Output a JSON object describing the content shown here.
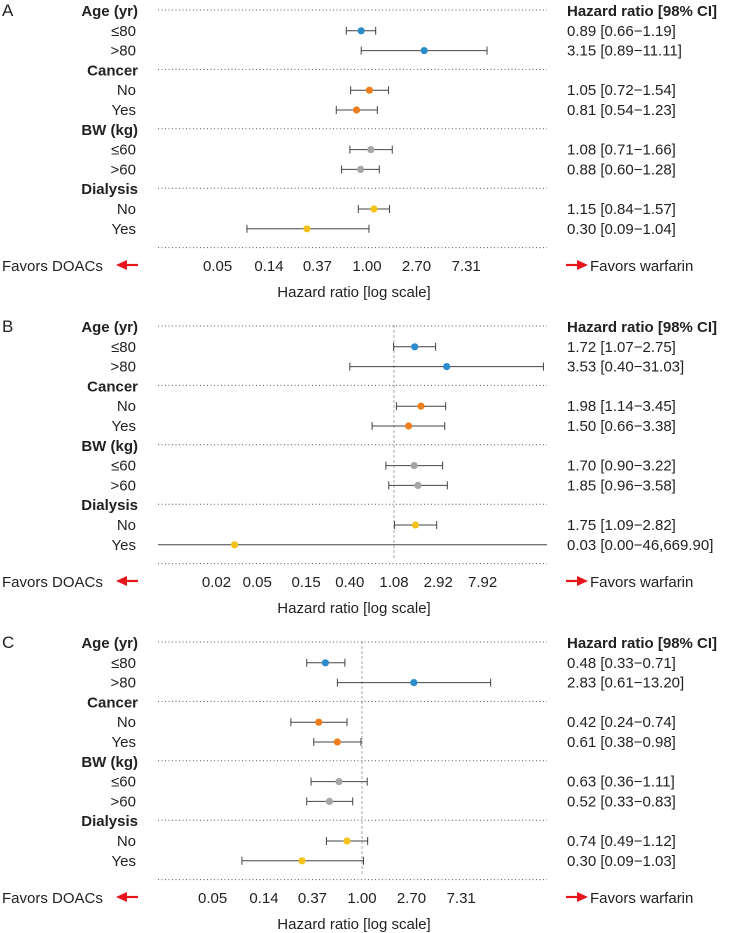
{
  "chart_data": [
    {
      "type": "forest",
      "panel": "A",
      "header": "Hazard ratio [98% CI]",
      "xlabel": "Hazard ratio [log scale]",
      "favors_left": "Favors DOACs",
      "favors_right": "Favors warfarin",
      "x_ticks": [
        "0.05",
        "0.14",
        "0.37",
        "1.00",
        "2.70",
        "7.31"
      ],
      "tick_values": [
        0.05,
        0.14,
        0.37,
        1.0,
        2.7,
        7.31
      ],
      "reference_line": false,
      "groups": [
        {
          "name": "Age (yr)",
          "rows": [
            {
              "label": "≤80",
              "hr": 0.89,
              "lo": 0.66,
              "hi": 1.19,
              "ci_text": "0.89 [0.66−1.19]",
              "color": "#2b8ccc"
            },
            {
              "label": ">80",
              "hr": 3.15,
              "lo": 0.89,
              "hi": 11.11,
              "ci_text": "3.15 [0.89−11.11]",
              "color": "#2b8ccc"
            }
          ]
        },
        {
          "name": "Cancer",
          "rows": [
            {
              "label": "No",
              "hr": 1.05,
              "lo": 0.72,
              "hi": 1.54,
              "ci_text": "1.05 [0.72−1.54]",
              "color": "#ee7d1e"
            },
            {
              "label": "Yes",
              "hr": 0.81,
              "lo": 0.54,
              "hi": 1.23,
              "ci_text": "0.81 [0.54−1.23]",
              "color": "#ee7d1e"
            }
          ]
        },
        {
          "name": "BW (kg)",
          "rows": [
            {
              "label": "≤60",
              "hr": 1.08,
              "lo": 0.71,
              "hi": 1.66,
              "ci_text": "1.08 [0.71−1.66]",
              "color": "#a6a6a6"
            },
            {
              "label": ">60",
              "hr": 0.88,
              "lo": 0.6,
              "hi": 1.28,
              "ci_text": "0.88 [0.60−1.28]",
              "color": "#a6a6a6"
            }
          ]
        },
        {
          "name": "Dialysis",
          "rows": [
            {
              "label": "No",
              "hr": 1.15,
              "lo": 0.84,
              "hi": 1.57,
              "ci_text": "1.15 [0.84−1.57]",
              "color": "#f5c21a"
            },
            {
              "label": "Yes",
              "hr": 0.3,
              "lo": 0.09,
              "hi": 1.04,
              "ci_text": "0.30 [0.09−1.04]",
              "color": "#f5c21a"
            }
          ]
        }
      ]
    },
    {
      "type": "forest",
      "panel": "B",
      "header": "Hazard ratio [98% CI]",
      "xlabel": "Hazard ratio [log scale]",
      "favors_left": "Favors DOACs",
      "favors_right": "Favors warfarin",
      "x_ticks": [
        "0.02",
        "0.05",
        "0.15",
        "0.40",
        "1.08",
        "2.92",
        "7.92"
      ],
      "tick_values": [
        0.02,
        0.05,
        0.15,
        0.4,
        1.08,
        2.92,
        7.92
      ],
      "reference_line": true,
      "groups": [
        {
          "name": "Age (yr)",
          "rows": [
            {
              "label": "≤80",
              "hr": 1.72,
              "lo": 1.07,
              "hi": 2.75,
              "ci_text": "1.72 [1.07−2.75]",
              "color": "#2b8ccc"
            },
            {
              "label": ">80",
              "hr": 3.53,
              "lo": 0.4,
              "hi": 31.03,
              "ci_text": "3.53 [0.40−31.03]",
              "color": "#2b8ccc"
            }
          ]
        },
        {
          "name": "Cancer",
          "rows": [
            {
              "label": "No",
              "hr": 1.98,
              "lo": 1.14,
              "hi": 3.45,
              "ci_text": "1.98 [1.14−3.45]",
              "color": "#ee7d1e"
            },
            {
              "label": "Yes",
              "hr": 1.5,
              "lo": 0.66,
              "hi": 3.38,
              "ci_text": "1.50 [0.66−3.38]",
              "color": "#ee7d1e"
            }
          ]
        },
        {
          "name": "BW (kg)",
          "rows": [
            {
              "label": "≤60",
              "hr": 1.7,
              "lo": 0.9,
              "hi": 3.22,
              "ci_text": "1.70 [0.90−3.22]",
              "color": "#a6a6a6"
            },
            {
              "label": ">60",
              "hr": 1.85,
              "lo": 0.96,
              "hi": 3.58,
              "ci_text": "1.85 [0.96−3.58]",
              "color": "#a6a6a6"
            }
          ]
        },
        {
          "name": "Dialysis",
          "rows": [
            {
              "label": "No",
              "hr": 1.75,
              "lo": 1.09,
              "hi": 2.82,
              "ci_text": "1.75 [1.09−2.82]",
              "color": "#f5c21a"
            },
            {
              "label": "Yes",
              "hr": 0.03,
              "lo": 0.0,
              "hi": 46669.9,
              "ci_text": "0.03 [0.00−46,669.90]",
              "color": "#f5c21a"
            }
          ]
        }
      ]
    },
    {
      "type": "forest",
      "panel": "C",
      "header": "Hazard ratio [98% CI]",
      "xlabel": "Hazard ratio [log scale]",
      "favors_left": "Favors DOACs",
      "favors_right": "Favors warfarin",
      "x_ticks": [
        "0.05",
        "0.14",
        "0.37",
        "1.00",
        "2.70",
        "7.31"
      ],
      "tick_values": [
        0.05,
        0.14,
        0.37,
        1.0,
        2.7,
        7.31
      ],
      "reference_line": true,
      "groups": [
        {
          "name": "Age (yr)",
          "rows": [
            {
              "label": "≤80",
              "hr": 0.48,
              "lo": 0.33,
              "hi": 0.71,
              "ci_text": "0.48 [0.33−0.71]",
              "color": "#2b8ccc"
            },
            {
              "label": ">80",
              "hr": 2.83,
              "lo": 0.61,
              "hi": 13.2,
              "ci_text": "2.83 [0.61−13.20]",
              "color": "#2b8ccc"
            }
          ]
        },
        {
          "name": "Cancer",
          "rows": [
            {
              "label": "No",
              "hr": 0.42,
              "lo": 0.24,
              "hi": 0.74,
              "ci_text": "0.42 [0.24−0.74]",
              "color": "#ee7d1e"
            },
            {
              "label": "Yes",
              "hr": 0.61,
              "lo": 0.38,
              "hi": 0.98,
              "ci_text": "0.61 [0.38−0.98]",
              "color": "#ee7d1e"
            }
          ]
        },
        {
          "name": "BW (kg)",
          "rows": [
            {
              "label": "≤60",
              "hr": 0.63,
              "lo": 0.36,
              "hi": 1.11,
              "ci_text": "0.63 [0.36−1.11]",
              "color": "#a6a6a6"
            },
            {
              "label": ">60",
              "hr": 0.52,
              "lo": 0.33,
              "hi": 0.83,
              "ci_text": "0.52 [0.33−0.83]",
              "color": "#a6a6a6"
            }
          ]
        },
        {
          "name": "Dialysis",
          "rows": [
            {
              "label": "No",
              "hr": 0.74,
              "lo": 0.49,
              "hi": 1.12,
              "ci_text": "0.74 [0.49−1.12]",
              "color": "#f5c21a"
            },
            {
              "label": "Yes",
              "hr": 0.3,
              "lo": 0.09,
              "hi": 1.03,
              "ci_text": "0.30 [0.09−1.03]",
              "color": "#f5c21a"
            }
          ]
        }
      ]
    }
  ],
  "colors": {
    "arrow": "#e8141c",
    "separator": "#555555",
    "ci_line": "#444444",
    "reference": "#aaaaaa",
    "text": "#222222"
  }
}
